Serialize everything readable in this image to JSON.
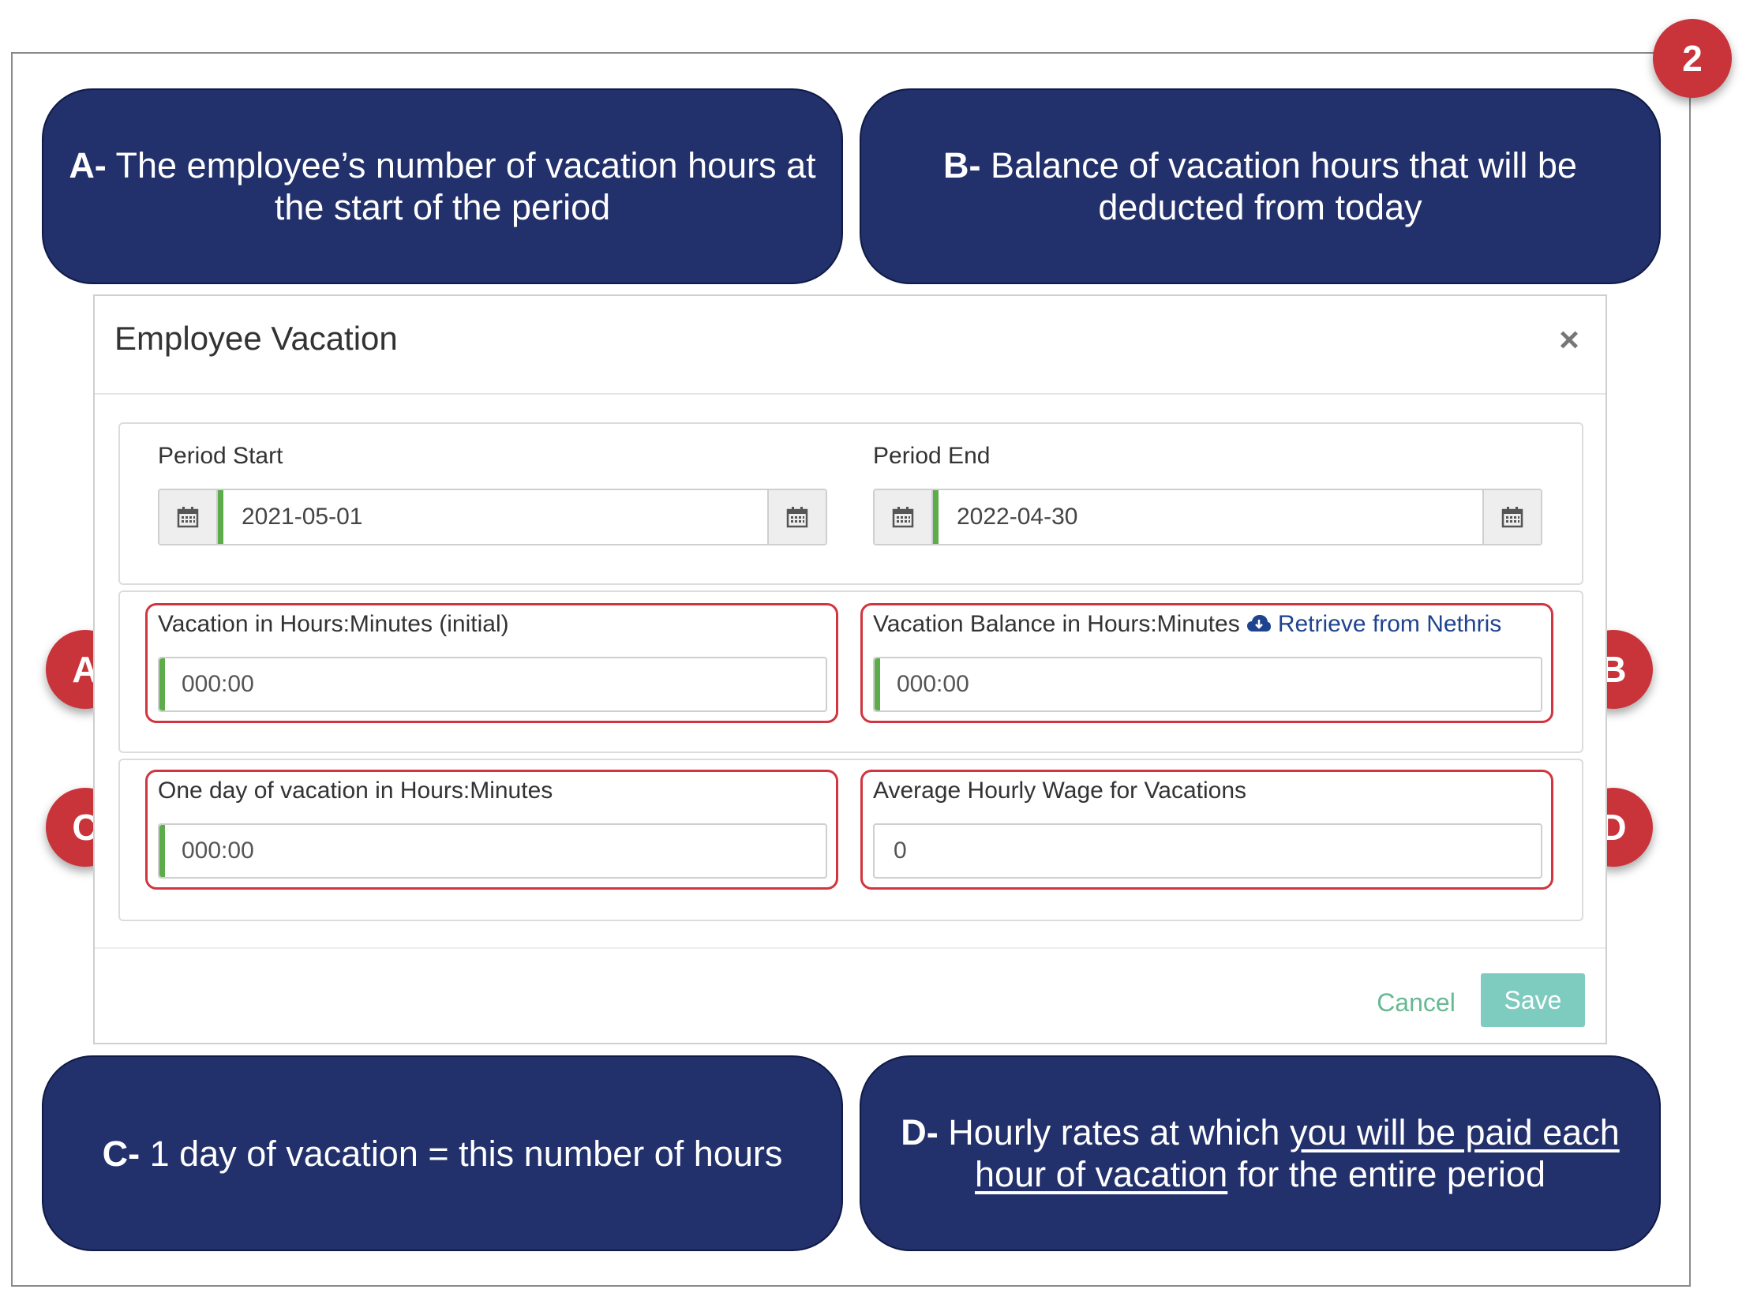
{
  "step_badge": "2",
  "callouts": {
    "a": {
      "lead": "A-",
      "text": "The employee’s number of vacation hours at the start of the period"
    },
    "b": {
      "lead": "B-",
      "text": "Balance of vacation hours that will be deducted from today"
    },
    "c": {
      "lead": "C-",
      "text": "1 day of vacation = this number of hours"
    },
    "d": {
      "lead": "D-",
      "text_before": "Hourly rates at which",
      "underlined": "you will be paid each hour of vacation",
      "text_after": "for the entire period"
    }
  },
  "markers": {
    "a": "A",
    "b": "B",
    "c": "C",
    "d": "D"
  },
  "modal": {
    "title": "Employee Vacation",
    "close_glyph": "×",
    "period_start": {
      "label": "Period Start",
      "value": "2021-05-01"
    },
    "period_end": {
      "label": "Period End",
      "value": "2022-04-30"
    },
    "vacation_initial": {
      "label": "Vacation in Hours:Minutes (initial)",
      "value": "000:00"
    },
    "vacation_balance": {
      "label": "Vacation Balance in Hours:Minutes",
      "link": "Retrieve from Nethris",
      "value": "000:00"
    },
    "one_day": {
      "label": "One day of vacation in Hours:Minutes",
      "value": "000:00"
    },
    "avg_wage": {
      "label": "Average Hourly Wage for Vacations",
      "value": "0"
    },
    "cancel_label": "Cancel",
    "save_label": "Save"
  },
  "colors": {
    "callout_bg": "#22306b",
    "badge_red": "#c8343a",
    "highlight_outline": "#d1353f",
    "input_accent": "#5cad4a",
    "save_bg": "#7ecbbf",
    "cancel_text": "#68b894",
    "link": "#1e4390"
  },
  "icons": {
    "calendar": "calendar-icon",
    "cloud": "cloud-download-icon",
    "close": "close-icon"
  }
}
